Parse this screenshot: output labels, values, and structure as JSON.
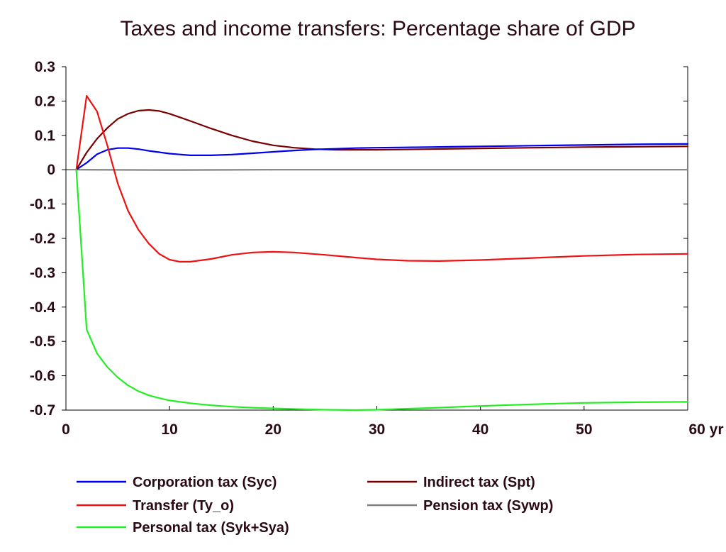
{
  "chart_data": {
    "type": "line",
    "title": "Taxes and income transfers: Percentage share of GDP",
    "xlabel": "",
    "ylabel": "",
    "x_unit_label": "yr",
    "xlim": [
      0,
      60
    ],
    "ylim": [
      -0.7,
      0.3
    ],
    "x_ticks": [
      "0",
      "10",
      "20",
      "30",
      "40",
      "50",
      "60"
    ],
    "y_ticks": [
      "0.3",
      "0.2",
      "0.1",
      "0",
      "-0.1",
      "-0.2",
      "-0.3",
      "-0.4",
      "-0.5",
      "-0.6",
      "-0.7"
    ],
    "grid": false,
    "legend_position": "bottom",
    "zero_line_color": "#000000",
    "series": [
      {
        "name": "Corporation tax (Syc)",
        "color": "#0000ee",
        "x": [
          1,
          2,
          3,
          4,
          5,
          6,
          7,
          8,
          10,
          12,
          14,
          16,
          18,
          20,
          22,
          24,
          26,
          28,
          30,
          35,
          40,
          45,
          50,
          55,
          60
        ],
        "y": [
          0.0,
          0.02,
          0.045,
          0.058,
          0.063,
          0.063,
          0.06,
          0.055,
          0.047,
          0.042,
          0.042,
          0.044,
          0.048,
          0.052,
          0.056,
          0.059,
          0.061,
          0.063,
          0.064,
          0.066,
          0.068,
          0.07,
          0.072,
          0.074,
          0.075
        ]
      },
      {
        "name": "Transfer (Ty_o)",
        "color": "#ee1111",
        "x": [
          1,
          2,
          3,
          4,
          5,
          6,
          7,
          8,
          9,
          10,
          11,
          12,
          14,
          16,
          18,
          20,
          22,
          25,
          28,
          30,
          33,
          36,
          40,
          45,
          50,
          55,
          60
        ],
        "y": [
          0.0,
          0.215,
          0.17,
          0.07,
          -0.04,
          -0.12,
          -0.175,
          -0.215,
          -0.245,
          -0.262,
          -0.268,
          -0.268,
          -0.26,
          -0.248,
          -0.241,
          -0.239,
          -0.241,
          -0.248,
          -0.256,
          -0.261,
          -0.265,
          -0.266,
          -0.263,
          -0.257,
          -0.251,
          -0.247,
          -0.245
        ]
      },
      {
        "name": "Personal tax (Syk+Sya)",
        "color": "#22ee22",
        "x": [
          1,
          2,
          3,
          4,
          5,
          6,
          7,
          8,
          9,
          10,
          12,
          14,
          16,
          18,
          20,
          22,
          25,
          28,
          30,
          35,
          40,
          45,
          50,
          55,
          60
        ],
        "y": [
          0.0,
          -0.465,
          -0.535,
          -0.575,
          -0.605,
          -0.628,
          -0.645,
          -0.657,
          -0.665,
          -0.672,
          -0.68,
          -0.686,
          -0.69,
          -0.693,
          -0.695,
          -0.697,
          -0.699,
          -0.7,
          -0.699,
          -0.694,
          -0.688,
          -0.683,
          -0.679,
          -0.677,
          -0.676
        ]
      },
      {
        "name": "Indirect tax (Spt)",
        "color": "#7a0000",
        "x": [
          1,
          2,
          3,
          4,
          5,
          6,
          7,
          8,
          9,
          10,
          12,
          14,
          16,
          18,
          20,
          22,
          24,
          26,
          28,
          30,
          35,
          40,
          45,
          50,
          55,
          60
        ],
        "y": [
          0.0,
          0.05,
          0.09,
          0.122,
          0.148,
          0.163,
          0.172,
          0.174,
          0.171,
          0.163,
          0.142,
          0.12,
          0.1,
          0.083,
          0.071,
          0.064,
          0.06,
          0.058,
          0.058,
          0.058,
          0.06,
          0.062,
          0.064,
          0.066,
          0.067,
          0.068
        ]
      },
      {
        "name": "Pension tax (Sywp)",
        "color": "#808080",
        "x": [
          1,
          10,
          20,
          30,
          40,
          50,
          60
        ],
        "y": [
          0.0,
          -0.001,
          0.0,
          0.0,
          0.0,
          0.0,
          0.0
        ]
      }
    ]
  }
}
